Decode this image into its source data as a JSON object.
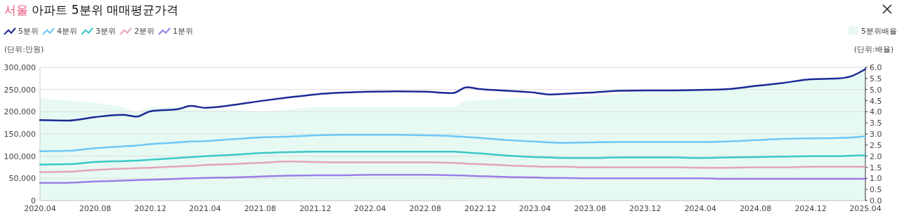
{
  "chart_data": {
    "type": "line",
    "title": "서울 아파트 5분위 매매평균가격",
    "x": [
      "2020-04",
      "2020-06",
      "2020-08",
      "2020-10",
      "2020-11",
      "2020-12",
      "2021-02",
      "2021-03",
      "2021-04",
      "2021-06",
      "2021-08",
      "2021-10",
      "2021-12",
      "2022-02",
      "2022-04",
      "2022-06",
      "2022-08",
      "2022-10",
      "2022-11",
      "2022-12",
      "2023-02",
      "2023-04",
      "2023-05",
      "2023-06",
      "2023-08",
      "2023-10",
      "2023-12",
      "2024-02",
      "2024-04",
      "2024-06",
      "2024-08",
      "2024-10",
      "2024-12",
      "2025-02",
      "2025-03",
      "2025-04"
    ],
    "series": [
      {
        "name": "5분위배율",
        "type": "area",
        "axis": "y2",
        "color": "#e6faf3",
        "values": [
          4.6,
          4.5,
          4.4,
          4.2,
          4.0,
          4.2,
          4.2,
          4.1,
          4.1,
          4.1,
          4.0,
          4.1,
          4.2,
          4.2,
          4.2,
          4.2,
          4.2,
          4.2,
          4.5,
          4.5,
          4.6,
          4.6,
          4.6,
          4.6,
          4.7,
          4.8,
          4.9,
          4.9,
          5.0,
          5.0,
          5.15,
          5.3,
          5.45,
          5.5,
          5.6,
          5.9
        ]
      },
      {
        "name": "5분위",
        "color": "#1b2a96",
        "values": [
          181000,
          180000,
          188000,
          193000,
          189000,
          201000,
          206000,
          213000,
          209000,
          215000,
          224000,
          232000,
          239000,
          243000,
          245000,
          246000,
          245000,
          242000,
          255000,
          251000,
          247000,
          243000,
          239000,
          240000,
          243000,
          247000,
          248000,
          248000,
          249000,
          251000,
          258000,
          265000,
          273000,
          275000,
          280000,
          296000
        ]
      },
      {
        "name": "4분위",
        "color": "#6cc8f8",
        "values": [
          111000,
          112000,
          118000,
          122000,
          124000,
          127000,
          131000,
          133000,
          134000,
          138000,
          142000,
          144000,
          147000,
          148000,
          148000,
          148000,
          147000,
          145000,
          143000,
          141000,
          136000,
          133000,
          131000,
          130000,
          131000,
          132000,
          132000,
          132000,
          132000,
          133000,
          136000,
          139000,
          140000,
          141000,
          142000,
          145000
        ]
      },
      {
        "name": "3분위",
        "color": "#3cc6c8",
        "values": [
          81000,
          82000,
          87000,
          89000,
          90000,
          92000,
          96000,
          98000,
          100000,
          103000,
          107000,
          109000,
          110000,
          110000,
          110000,
          110000,
          110000,
          110000,
          108000,
          106000,
          101000,
          98000,
          97000,
          96000,
          96000,
          97000,
          97000,
          97000,
          96000,
          97000,
          98000,
          99000,
          100000,
          100000,
          101000,
          102000
        ]
      },
      {
        "name": "2분위",
        "color": "#e4a4ba",
        "values": [
          64000,
          65000,
          69000,
          72000,
          73000,
          74000,
          77000,
          78000,
          80000,
          82000,
          85000,
          88000,
          87000,
          86000,
          86000,
          86000,
          86000,
          85000,
          83000,
          82000,
          79000,
          77000,
          76000,
          76000,
          75000,
          75000,
          75000,
          75000,
          74000,
          74000,
          75000,
          75000,
          76000,
          76000,
          76000,
          76000
        ]
      },
      {
        "name": "1분위",
        "color": "#9a7ee6",
        "values": [
          40000,
          40000,
          43000,
          45000,
          46000,
          47000,
          49000,
          50000,
          51000,
          52000,
          54000,
          56000,
          57000,
          57000,
          58000,
          58000,
          58000,
          57000,
          56000,
          55000,
          53000,
          52000,
          51000,
          51000,
          50000,
          50000,
          50000,
          50000,
          50000,
          49000,
          49000,
          49000,
          49000,
          49000,
          49000,
          49000
        ]
      }
    ],
    "xlim": [
      "2020-04",
      "2025-04"
    ],
    "xticks": [
      {
        "value": "2020-04",
        "label": "2020.04"
      },
      {
        "value": "2020-08",
        "label": "2020.08"
      },
      {
        "value": "2020-12",
        "label": "2020.12"
      },
      {
        "value": "2021-04",
        "label": "2021.04"
      },
      {
        "value": "2021-08",
        "label": "2021.08"
      },
      {
        "value": "2021-12",
        "label": "2021.12"
      },
      {
        "value": "2022-04",
        "label": "2022.04"
      },
      {
        "value": "2022-08",
        "label": "2022.08"
      },
      {
        "value": "2022-12",
        "label": "2022.12"
      },
      {
        "value": "2023-04",
        "label": "2023.04"
      },
      {
        "value": "2023-08",
        "label": "2023.08"
      },
      {
        "value": "2023-12",
        "label": "2023.12"
      },
      {
        "value": "2024-04",
        "label": "2024.04"
      },
      {
        "value": "2024-08",
        "label": "2024.08"
      },
      {
        "value": "2024-12",
        "label": "2024.12"
      },
      {
        "value": "2025-04",
        "label": "2025.04"
      }
    ],
    "ylim": [
      0,
      300000
    ],
    "yticks": [
      0,
      {
        "value": 50000,
        "label": "50,000"
      },
      {
        "value": 100000,
        "label": "100,000"
      },
      {
        "value": 150000,
        "label": "150,000"
      },
      {
        "value": 200000,
        "label": "200,000"
      },
      {
        "value": 250000,
        "label": "250,000"
      },
      {
        "value": 300000,
        "label": "300,000"
      }
    ],
    "y2lim": [
      0,
      6
    ],
    "y2ticks": [
      {
        "value": 0,
        "label": "0.0"
      },
      {
        "value": 0.5,
        "label": "0.5"
      },
      {
        "value": 1,
        "label": "1.0"
      },
      {
        "value": 1.5,
        "label": "1.5"
      },
      {
        "value": 2,
        "label": "2.0"
      },
      {
        "value": 2.5,
        "label": "2.5"
      },
      {
        "value": 3,
        "label": "3.0"
      },
      {
        "value": 3.5,
        "label": "3.5"
      },
      {
        "value": 4,
        "label": "4.0"
      },
      {
        "value": 4.5,
        "label": "4.5"
      },
      {
        "value": 5,
        "label": "5.0"
      },
      {
        "value": 5.5,
        "label": "5.5"
      },
      {
        "value": 6,
        "label": "6.0"
      }
    ],
    "annotations": [
      "(단위:만원)",
      "(단위:배율)"
    ],
    "grid": "y",
    "legend": "top",
    "marker": "none",
    "line_style": "solid"
  }
}
